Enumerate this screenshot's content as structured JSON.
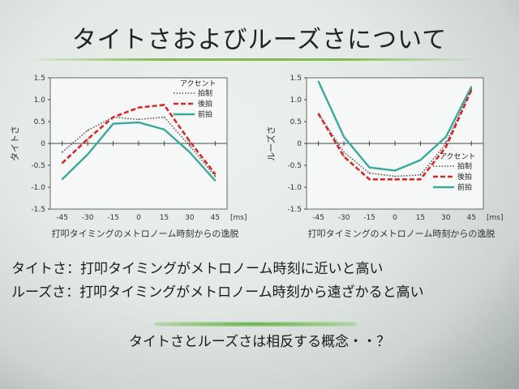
{
  "slide": {
    "title": "タイトさおよびルーズさについて",
    "lines": [
      "タイトさ：打叩タイミングがメトロノーム時刻に近いと高い",
      "ルーズさ：打叩タイミングがメトロノーム時刻から遠ざかると高い"
    ],
    "conclusion": "タイトさとルーズさは相反する概念・・？"
  },
  "colors": {
    "steady": "#555555",
    "back": "#d42a2a",
    "front": "#3aa89c",
    "background": "#e6ebe8"
  },
  "chart_data": [
    {
      "type": "line",
      "ylabel": "タイトさ",
      "xlabel": "打叩タイミングのメトロノーム時刻からの逸脱",
      "x_unit": "[ms]",
      "x": [
        -45,
        -30,
        -15,
        0,
        15,
        30,
        45
      ],
      "xlim": [
        -52,
        52
      ],
      "ylim": [
        -1.5,
        1.5
      ],
      "yticks": [
        "1.5",
        "1.0",
        "0.5",
        "0",
        "-0.5",
        "-1.0",
        "-1.5"
      ],
      "legend_title": "アクセント",
      "legend_position": "top-right",
      "series": [
        {
          "name": "拍制",
          "style": "dotted",
          "color": "#555555",
          "values": [
            -0.2,
            0.3,
            0.6,
            0.55,
            0.6,
            -0.05,
            -0.75
          ]
        },
        {
          "name": "後拍",
          "style": "dashed",
          "color": "#d42a2a",
          "values": [
            -0.45,
            0.1,
            0.6,
            0.82,
            0.88,
            0.05,
            -0.7
          ]
        },
        {
          "name": "前拍",
          "style": "solid",
          "color": "#3aa89c",
          "values": [
            -0.82,
            -0.25,
            0.45,
            0.48,
            0.32,
            -0.2,
            -0.85
          ]
        }
      ]
    },
    {
      "type": "line",
      "ylabel": "ルーズさ",
      "xlabel": "打叩タイミングのメトロノーム時刻からの逸脱",
      "x_unit": "[ms]",
      "x": [
        -45,
        -30,
        -15,
        0,
        15,
        30,
        45
      ],
      "xlim": [
        -52,
        52
      ],
      "ylim": [
        -1.5,
        1.5
      ],
      "yticks": [
        "1.5",
        "1.0",
        "0.5",
        "0",
        "-0.5",
        "-1.0",
        "-1.5"
      ],
      "legend_title": "アクセント",
      "legend_position": "bottom-right",
      "series": [
        {
          "name": "拍制",
          "style": "dotted",
          "color": "#555555",
          "values": [
            0.68,
            -0.2,
            -0.68,
            -0.75,
            -0.72,
            0.0,
            1.25
          ]
        },
        {
          "name": "後拍",
          "style": "dashed",
          "color": "#d42a2a",
          "values": [
            0.68,
            -0.3,
            -0.82,
            -0.82,
            -0.82,
            -0.08,
            1.22
          ]
        },
        {
          "name": "前拍",
          "style": "solid",
          "color": "#3aa89c",
          "values": [
            1.42,
            0.15,
            -0.55,
            -0.62,
            -0.38,
            0.15,
            1.3
          ]
        }
      ]
    }
  ]
}
